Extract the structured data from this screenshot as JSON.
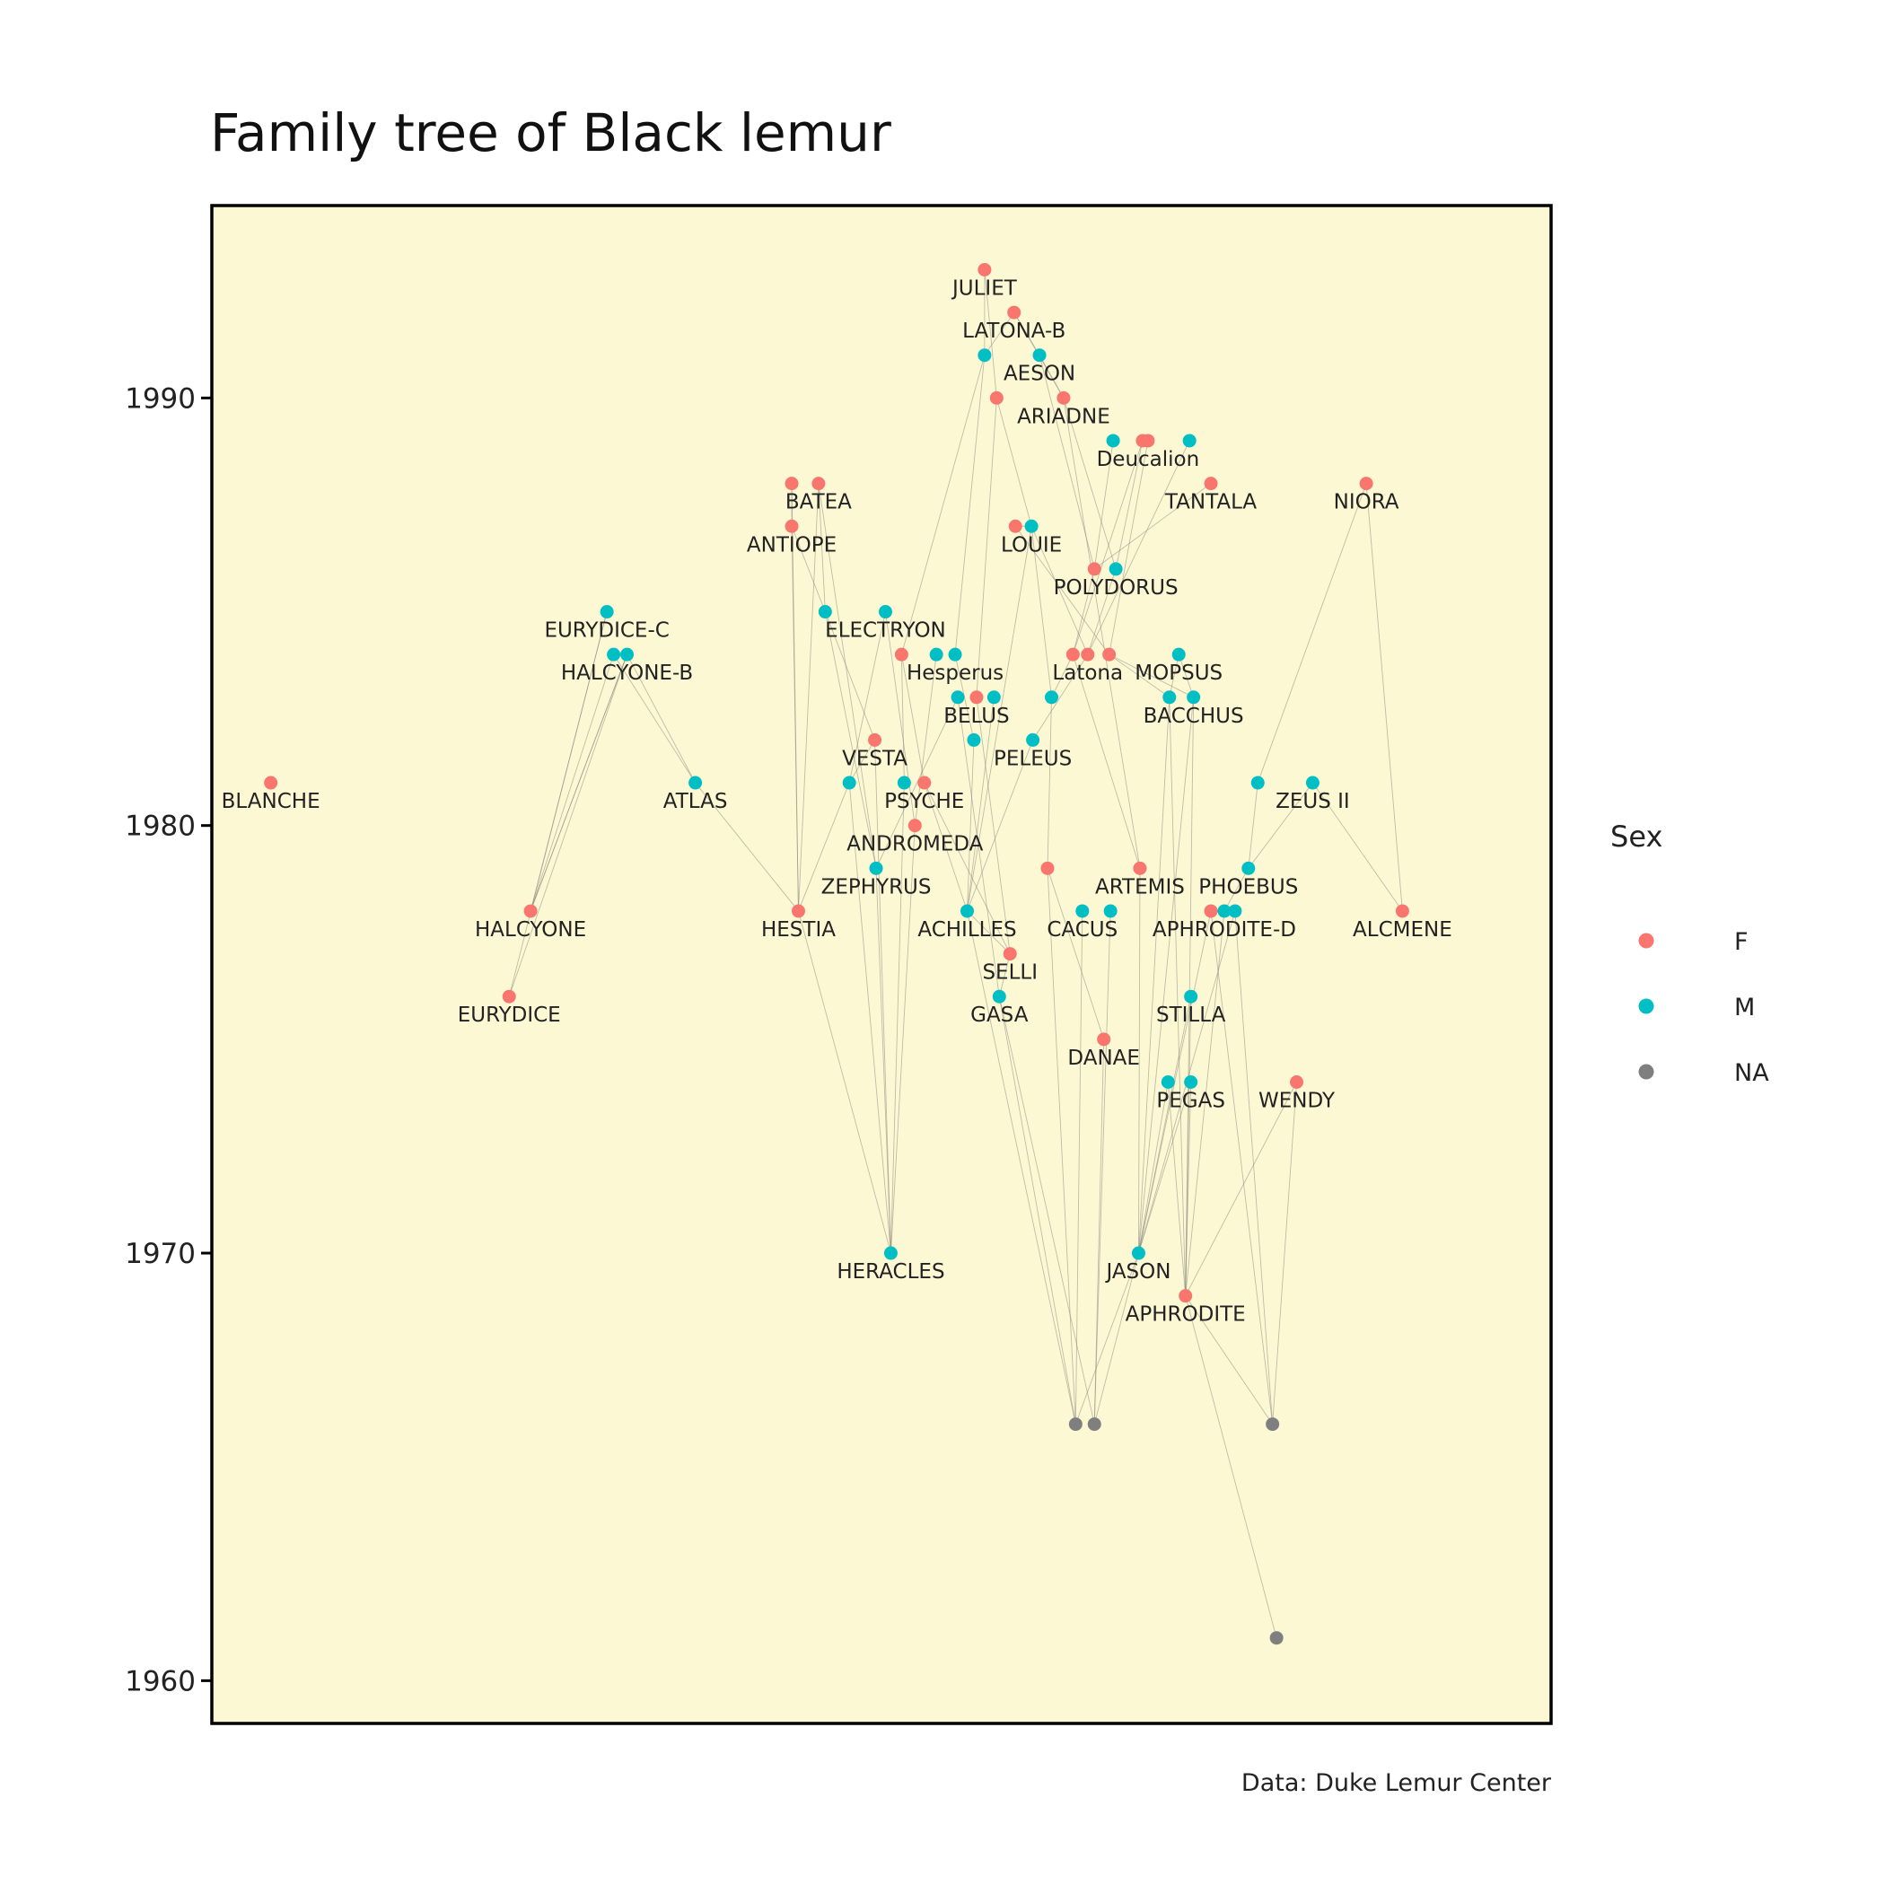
{
  "chart_data": {
    "type": "scatter",
    "title": "Family tree of Black lemur",
    "caption": "Data: Duke Lemur Center",
    "ylabel": "",
    "xlabel": "",
    "ylim": [
      1959,
      1994.5
    ],
    "xlim": [
      0,
      1
    ],
    "yticks": [
      1960,
      1970,
      1980,
      1990
    ],
    "x_axis_visible": false,
    "grid": false,
    "background_color": "#fdf8d4",
    "legend": {
      "title": "Sex",
      "placement": "right",
      "entries": [
        {
          "label": "F",
          "color": "#f8766d"
        },
        {
          "label": "M",
          "color": "#00bfc4"
        },
        {
          "label": "NA",
          "color": "#7f7f7f"
        }
      ]
    },
    "nodes": [
      {
        "id": 0,
        "label": "JULIET",
        "sex": "F",
        "x": 0.577,
        "year": 1993
      },
      {
        "id": 1,
        "label": "LATONA-B",
        "sex": "F",
        "x": 0.599,
        "year": 1992
      },
      {
        "id": 2,
        "label": "",
        "sex": "M",
        "x": 0.577,
        "year": 1991
      },
      {
        "id": 3,
        "label": "AESON",
        "sex": "M",
        "x": 0.618,
        "year": 1991
      },
      {
        "id": 4,
        "label": "",
        "sex": "F",
        "x": 0.586,
        "year": 1990
      },
      {
        "id": 5,
        "label": "ARIADNE",
        "sex": "F",
        "x": 0.636,
        "year": 1990
      },
      {
        "id": 6,
        "label": "",
        "sex": "M",
        "x": 0.673,
        "year": 1989
      },
      {
        "id": 7,
        "label": "",
        "sex": "F",
        "x": 0.695,
        "year": 1989
      },
      {
        "id": 8,
        "label": "Deucalion",
        "sex": "F",
        "x": 0.699,
        "year": 1989
      },
      {
        "id": 9,
        "label": "",
        "sex": "M",
        "x": 0.73,
        "year": 1989
      },
      {
        "id": 10,
        "label": "",
        "sex": "F",
        "x": 0.433,
        "year": 1988
      },
      {
        "id": 11,
        "label": "BATEA",
        "sex": "F",
        "x": 0.453,
        "year": 1988
      },
      {
        "id": 12,
        "label": "TANTALA",
        "sex": "F",
        "x": 0.746,
        "year": 1988
      },
      {
        "id": 13,
        "label": "NIORA",
        "sex": "F",
        "x": 0.862,
        "year": 1988
      },
      {
        "id": 14,
        "label": "ANTIOPE",
        "sex": "F",
        "x": 0.433,
        "year": 1987
      },
      {
        "id": 15,
        "label": "",
        "sex": "F",
        "x": 0.6,
        "year": 1987
      },
      {
        "id": 16,
        "label": "LOUIE",
        "sex": "M",
        "x": 0.612,
        "year": 1987
      },
      {
        "id": 17,
        "label": "",
        "sex": "F",
        "x": 0.659,
        "year": 1986
      },
      {
        "id": 18,
        "label": "POLYDORUS",
        "sex": "M",
        "x": 0.675,
        "year": 1986
      },
      {
        "id": 19,
        "label": "EURYDICE-C",
        "sex": "M",
        "x": 0.295,
        "year": 1985
      },
      {
        "id": 20,
        "label": "",
        "sex": "M",
        "x": 0.458,
        "year": 1985
      },
      {
        "id": 21,
        "label": "ELECTRYON",
        "sex": "M",
        "x": 0.503,
        "year": 1985
      },
      {
        "id": 22,
        "label": "",
        "sex": "M",
        "x": 0.3,
        "year": 1984
      },
      {
        "id": 23,
        "label": "HALCYONE-B",
        "sex": "M",
        "x": 0.31,
        "year": 1984
      },
      {
        "id": 24,
        "label": "",
        "sex": "F",
        "x": 0.515,
        "year": 1984
      },
      {
        "id": 25,
        "label": "",
        "sex": "M",
        "x": 0.541,
        "year": 1984
      },
      {
        "id": 26,
        "label": "Hesperus",
        "sex": "M",
        "x": 0.555,
        "year": 1984
      },
      {
        "id": 27,
        "label": "",
        "sex": "F",
        "x": 0.643,
        "year": 1984
      },
      {
        "id": 28,
        "label": "Latona",
        "sex": "F",
        "x": 0.654,
        "year": 1984
      },
      {
        "id": 29,
        "label": "",
        "sex": "F",
        "x": 0.67,
        "year": 1984
      },
      {
        "id": 30,
        "label": "MOPSUS",
        "sex": "M",
        "x": 0.722,
        "year": 1984
      },
      {
        "id": 31,
        "label": "",
        "sex": "M",
        "x": 0.557,
        "year": 1983
      },
      {
        "id": 32,
        "label": "BELUS",
        "sex": "F",
        "x": 0.571,
        "year": 1983
      },
      {
        "id": 33,
        "label": "",
        "sex": "M",
        "x": 0.584,
        "year": 1983
      },
      {
        "id": 34,
        "label": "",
        "sex": "M",
        "x": 0.627,
        "year": 1983
      },
      {
        "id": 35,
        "label": "",
        "sex": "M",
        "x": 0.715,
        "year": 1983
      },
      {
        "id": 36,
        "label": "BACCHUS",
        "sex": "M",
        "x": 0.733,
        "year": 1983
      },
      {
        "id": 37,
        "label": "VESTA",
        "sex": "F",
        "x": 0.495,
        "year": 1982
      },
      {
        "id": 38,
        "label": "",
        "sex": "M",
        "x": 0.569,
        "year": 1982
      },
      {
        "id": 39,
        "label": "PELEUS",
        "sex": "M",
        "x": 0.613,
        "year": 1982
      },
      {
        "id": 40,
        "label": "BLANCHE",
        "sex": "F",
        "x": 0.044,
        "year": 1981
      },
      {
        "id": 41,
        "label": "ATLAS",
        "sex": "M",
        "x": 0.361,
        "year": 1981
      },
      {
        "id": 42,
        "label": "",
        "sex": "M",
        "x": 0.476,
        "year": 1981
      },
      {
        "id": 43,
        "label": "",
        "sex": "M",
        "x": 0.517,
        "year": 1981
      },
      {
        "id": 44,
        "label": "PSYCHE",
        "sex": "F",
        "x": 0.532,
        "year": 1981
      },
      {
        "id": 45,
        "label": "",
        "sex": "M",
        "x": 0.781,
        "year": 1981
      },
      {
        "id": 46,
        "label": "ZEUS II",
        "sex": "M",
        "x": 0.822,
        "year": 1981
      },
      {
        "id": 47,
        "label": "ANDROMEDA",
        "sex": "F",
        "x": 0.525,
        "year": 1980
      },
      {
        "id": 48,
        "label": "ZEPHYRUS",
        "sex": "M",
        "x": 0.496,
        "year": 1979
      },
      {
        "id": 49,
        "label": "",
        "sex": "F",
        "x": 0.624,
        "year": 1979
      },
      {
        "id": 50,
        "label": "ARTEMIS",
        "sex": "F",
        "x": 0.693,
        "year": 1979
      },
      {
        "id": 51,
        "label": "PHOEBUS",
        "sex": "M",
        "x": 0.774,
        "year": 1979
      },
      {
        "id": 52,
        "label": "HALCYONE",
        "sex": "F",
        "x": 0.238,
        "year": 1978
      },
      {
        "id": 53,
        "label": "HESTIA",
        "sex": "F",
        "x": 0.438,
        "year": 1978
      },
      {
        "id": 54,
        "label": "ACHILLES",
        "sex": "M",
        "x": 0.564,
        "year": 1978
      },
      {
        "id": 55,
        "label": "CACUS",
        "sex": "M",
        "x": 0.65,
        "year": 1978
      },
      {
        "id": 56,
        "label": "",
        "sex": "M",
        "x": 0.671,
        "year": 1978
      },
      {
        "id": 57,
        "label": "",
        "sex": "F",
        "x": 0.746,
        "year": 1978
      },
      {
        "id": 58,
        "label": "APHRODITE-D",
        "sex": "M",
        "x": 0.756,
        "year": 1978
      },
      {
        "id": 59,
        "label": "",
        "sex": "M",
        "x": 0.764,
        "year": 1978
      },
      {
        "id": 60,
        "label": "ALCMENE",
        "sex": "F",
        "x": 0.889,
        "year": 1978
      },
      {
        "id": 61,
        "label": "SELLI",
        "sex": "F",
        "x": 0.596,
        "year": 1977
      },
      {
        "id": 62,
        "label": "EURYDICE",
        "sex": "F",
        "x": 0.222,
        "year": 1976
      },
      {
        "id": 63,
        "label": "GASA",
        "sex": "M",
        "x": 0.588,
        "year": 1976
      },
      {
        "id": 64,
        "label": "STILLA",
        "sex": "M",
        "x": 0.731,
        "year": 1976
      },
      {
        "id": 65,
        "label": "DANAE",
        "sex": "F",
        "x": 0.666,
        "year": 1975
      },
      {
        "id": 66,
        "label": "",
        "sex": "M",
        "x": 0.714,
        "year": 1974
      },
      {
        "id": 67,
        "label": "PEGAS",
        "sex": "M",
        "x": 0.731,
        "year": 1974
      },
      {
        "id": 68,
        "label": "WENDY",
        "sex": "F",
        "x": 0.81,
        "year": 1974
      },
      {
        "id": 69,
        "label": "HERACLES",
        "sex": "M",
        "x": 0.507,
        "year": 1970
      },
      {
        "id": 70,
        "label": "JASON",
        "sex": "M",
        "x": 0.692,
        "year": 1970
      },
      {
        "id": 71,
        "label": "APHRODITE",
        "sex": "F",
        "x": 0.727,
        "year": 1969
      },
      {
        "id": 72,
        "label": "",
        "sex": "NA",
        "x": 0.645,
        "year": 1966
      },
      {
        "id": 73,
        "label": "",
        "sex": "NA",
        "x": 0.659,
        "year": 1966
      },
      {
        "id": 74,
        "label": "",
        "sex": "NA",
        "x": 0.792,
        "year": 1966
      },
      {
        "id": 75,
        "label": "",
        "sex": "NA",
        "x": 0.795,
        "year": 1961
      }
    ],
    "edges": [
      [
        0,
        2
      ],
      [
        0,
        4
      ],
      [
        1,
        2
      ],
      [
        1,
        3
      ],
      [
        1,
        5
      ],
      [
        2,
        26
      ],
      [
        2,
        24
      ],
      [
        4,
        16
      ],
      [
        4,
        32
      ],
      [
        3,
        5
      ],
      [
        3,
        17
      ],
      [
        5,
        18
      ],
      [
        5,
        50
      ],
      [
        6,
        17
      ],
      [
        7,
        18
      ],
      [
        8,
        29
      ],
      [
        9,
        28
      ],
      [
        7,
        27
      ],
      [
        12,
        17
      ],
      [
        13,
        45
      ],
      [
        13,
        60
      ],
      [
        10,
        14
      ],
      [
        10,
        53
      ],
      [
        11,
        20
      ],
      [
        11,
        48
      ],
      [
        11,
        53
      ],
      [
        14,
        53
      ],
      [
        14,
        20
      ],
      [
        15,
        16
      ],
      [
        15,
        29
      ],
      [
        16,
        28
      ],
      [
        16,
        34
      ],
      [
        16,
        54
      ],
      [
        17,
        27
      ],
      [
        18,
        28
      ],
      [
        19,
        52
      ],
      [
        19,
        62
      ],
      [
        22,
        52
      ],
      [
        22,
        41
      ],
      [
        23,
        41
      ],
      [
        23,
        52
      ],
      [
        23,
        62
      ],
      [
        20,
        48
      ],
      [
        20,
        37
      ],
      [
        21,
        47
      ],
      [
        21,
        42
      ],
      [
        24,
        44
      ],
      [
        24,
        43
      ],
      [
        25,
        47
      ],
      [
        26,
        38
      ],
      [
        27,
        34
      ],
      [
        27,
        50
      ],
      [
        28,
        39
      ],
      [
        29,
        35
      ],
      [
        29,
        36
      ],
      [
        30,
        35
      ],
      [
        30,
        36
      ],
      [
        31,
        48
      ],
      [
        31,
        63
      ],
      [
        32,
        61
      ],
      [
        33,
        54
      ],
      [
        34,
        49
      ],
      [
        35,
        70
      ],
      [
        35,
        71
      ],
      [
        36,
        71
      ],
      [
        36,
        70
      ],
      [
        37,
        69
      ],
      [
        38,
        54
      ],
      [
        39,
        54
      ],
      [
        41,
        53
      ],
      [
        42,
        37
      ],
      [
        42,
        69
      ],
      [
        43,
        69
      ],
      [
        44,
        61
      ],
      [
        44,
        54
      ],
      [
        45,
        51
      ],
      [
        46,
        51
      ],
      [
        46,
        60
      ],
      [
        47,
        69
      ],
      [
        48,
        69
      ],
      [
        49,
        65
      ],
      [
        50,
        70
      ],
      [
        51,
        58
      ],
      [
        52,
        23
      ],
      [
        53,
        42
      ],
      [
        53,
        69
      ],
      [
        54,
        61
      ],
      [
        55,
        72
      ],
      [
        56,
        73
      ],
      [
        57,
        70
      ],
      [
        58,
        71
      ],
      [
        59,
        70
      ],
      [
        61,
        63
      ],
      [
        63,
        72
      ],
      [
        63,
        73
      ],
      [
        64,
        71
      ],
      [
        64,
        70
      ],
      [
        65,
        73
      ],
      [
        66,
        70
      ],
      [
        66,
        71
      ],
      [
        67,
        70
      ],
      [
        67,
        71
      ],
      [
        68,
        71
      ],
      [
        68,
        74
      ],
      [
        70,
        72
      ],
      [
        70,
        73
      ],
      [
        71,
        74
      ],
      [
        71,
        75
      ],
      [
        57,
        74
      ],
      [
        59,
        74
      ],
      [
        54,
        72
      ],
      [
        49,
        72
      ]
    ]
  }
}
